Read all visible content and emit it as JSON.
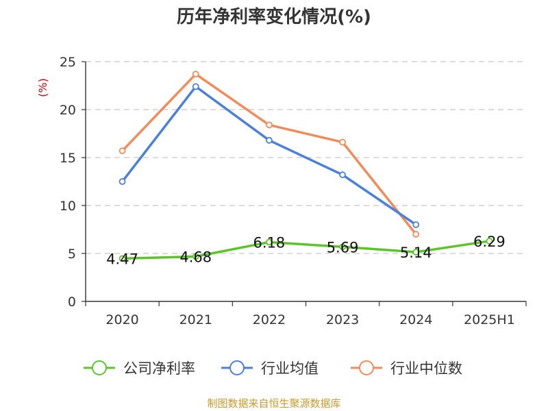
{
  "title": "历年净利率变化情况(%)",
  "source": "制图数据来自恒生聚源数据库",
  "chart_data": {
    "type": "line",
    "title": "历年净利率变化情况(%)",
    "ylabel": "(%)",
    "xlabel": "",
    "categories": [
      "2020",
      "2021",
      "2022",
      "2023",
      "2024",
      "2025H1"
    ],
    "ylim": [
      0,
      25
    ],
    "yticks": [
      0,
      5,
      10,
      15,
      20,
      25
    ],
    "grid": true,
    "legend_position": "bottom",
    "series": [
      {
        "name": "公司净利率",
        "color": "#5cc42a",
        "labels": true,
        "values": [
          4.47,
          4.68,
          6.18,
          5.69,
          5.14,
          6.29
        ]
      },
      {
        "name": "行业均值",
        "color": "#4a7fdc",
        "labels": false,
        "values": [
          12.5,
          22.4,
          16.8,
          13.2,
          8.0,
          null
        ]
      },
      {
        "name": "行业中位数",
        "color": "#f28b5a",
        "labels": false,
        "values": [
          15.7,
          23.7,
          18.4,
          16.6,
          7.0,
          null
        ]
      }
    ]
  }
}
